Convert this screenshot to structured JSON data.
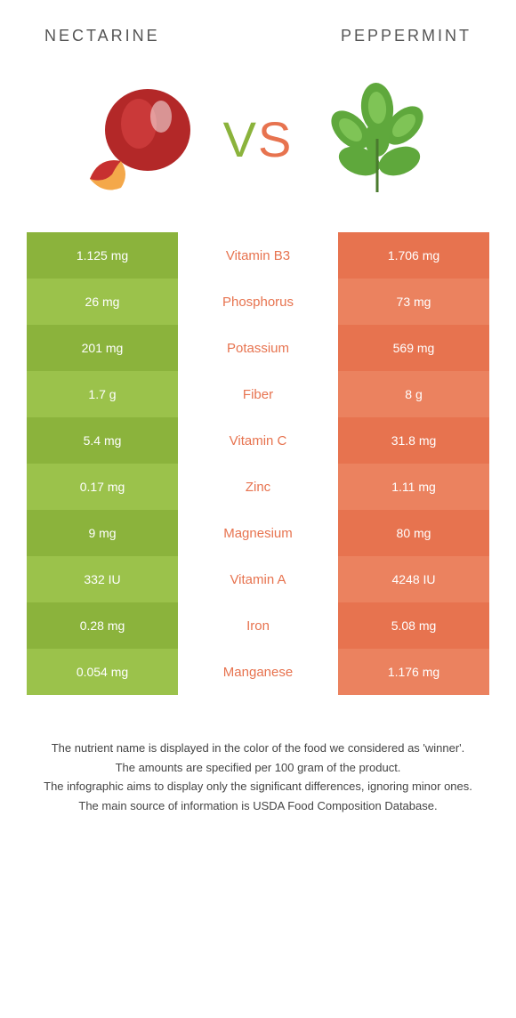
{
  "header": {
    "left_title": "NECTARINE",
    "right_title": "PEPPERMINT"
  },
  "vs": {
    "text": "VS",
    "left_color": "#8bb33c",
    "right_color": "#e7734f"
  },
  "colors": {
    "left_bg_a": "#8bb33c",
    "left_bg_b": "#9bc24b",
    "right_bg_a": "#e7734f",
    "right_bg_b": "#eb825f",
    "nutrient_winner_right": "#e7734f",
    "nutrient_winner_left": "#8bb33c",
    "cell_text": "#ffffff"
  },
  "rows": [
    {
      "nutrient": "Vitamin B3",
      "left": "1.125 mg",
      "right": "1.706 mg",
      "winner": "right"
    },
    {
      "nutrient": "Phosphorus",
      "left": "26 mg",
      "right": "73 mg",
      "winner": "right"
    },
    {
      "nutrient": "Potassium",
      "left": "201 mg",
      "right": "569 mg",
      "winner": "right"
    },
    {
      "nutrient": "Fiber",
      "left": "1.7 g",
      "right": "8 g",
      "winner": "right"
    },
    {
      "nutrient": "Vitamin C",
      "left": "5.4 mg",
      "right": "31.8 mg",
      "winner": "right"
    },
    {
      "nutrient": "Zinc",
      "left": "0.17 mg",
      "right": "1.11 mg",
      "winner": "right"
    },
    {
      "nutrient": "Magnesium",
      "left": "9 mg",
      "right": "80 mg",
      "winner": "right"
    },
    {
      "nutrient": "Vitamin A",
      "left": "332 IU",
      "right": "4248 IU",
      "winner": "right"
    },
    {
      "nutrient": "Iron",
      "left": "0.28 mg",
      "right": "5.08 mg",
      "winner": "right"
    },
    {
      "nutrient": "Manganese",
      "left": "0.054 mg",
      "right": "1.176 mg",
      "winner": "right"
    }
  ],
  "footer": {
    "line1": "The nutrient name is displayed in the color of the food we considered as 'winner'.",
    "line2": "The amounts are specified per 100 gram of the product.",
    "line3": "The infographic aims to display only the significant differences, ignoring minor ones.",
    "line4": "The main source of information is USDA Food Composition Database."
  }
}
